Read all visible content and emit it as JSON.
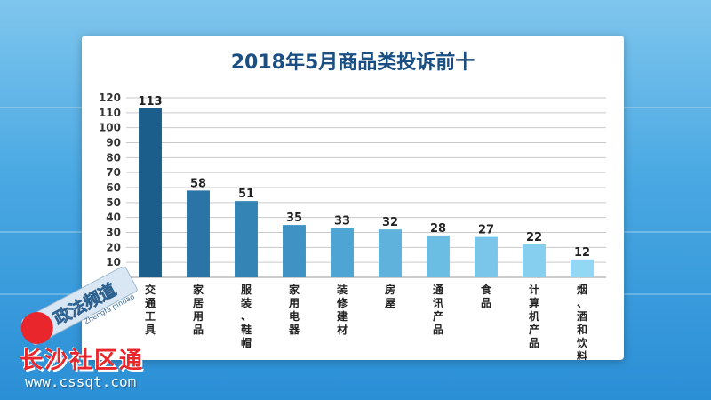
{
  "chart_data": {
    "type": "bar",
    "title": "2018年5月商品类投诉前十",
    "categories": [
      "交通工具",
      "家居用品",
      "服装、鞋帽",
      "家用电器",
      "装修建材",
      "房屋",
      "通讯产品",
      "食品",
      "计算机产品",
      "烟、酒和饮料"
    ],
    "values": [
      113,
      58,
      51,
      35,
      33,
      32,
      28,
      27,
      22,
      12
    ],
    "ylim": [
      0,
      120
    ],
    "yticks": [
      10,
      20,
      30,
      40,
      50,
      60,
      70,
      80,
      90,
      100,
      110,
      120
    ],
    "grid": true,
    "bar_colors": [
      "#1b5e8c",
      "#2b74a6",
      "#3484b6",
      "#3f93c4",
      "#4ea4d2",
      "#5eb2dc",
      "#6cbde4",
      "#79c6ea",
      "#86cfef",
      "#92d7f3"
    ]
  },
  "watermark": {
    "channel_text": "长沙社区通",
    "url": "www.cssqt.com",
    "logo_text": "政法频道",
    "logo_sub": "Zhengfa pindao",
    "colors": {
      "logo_red": "#e8262c"
    }
  }
}
